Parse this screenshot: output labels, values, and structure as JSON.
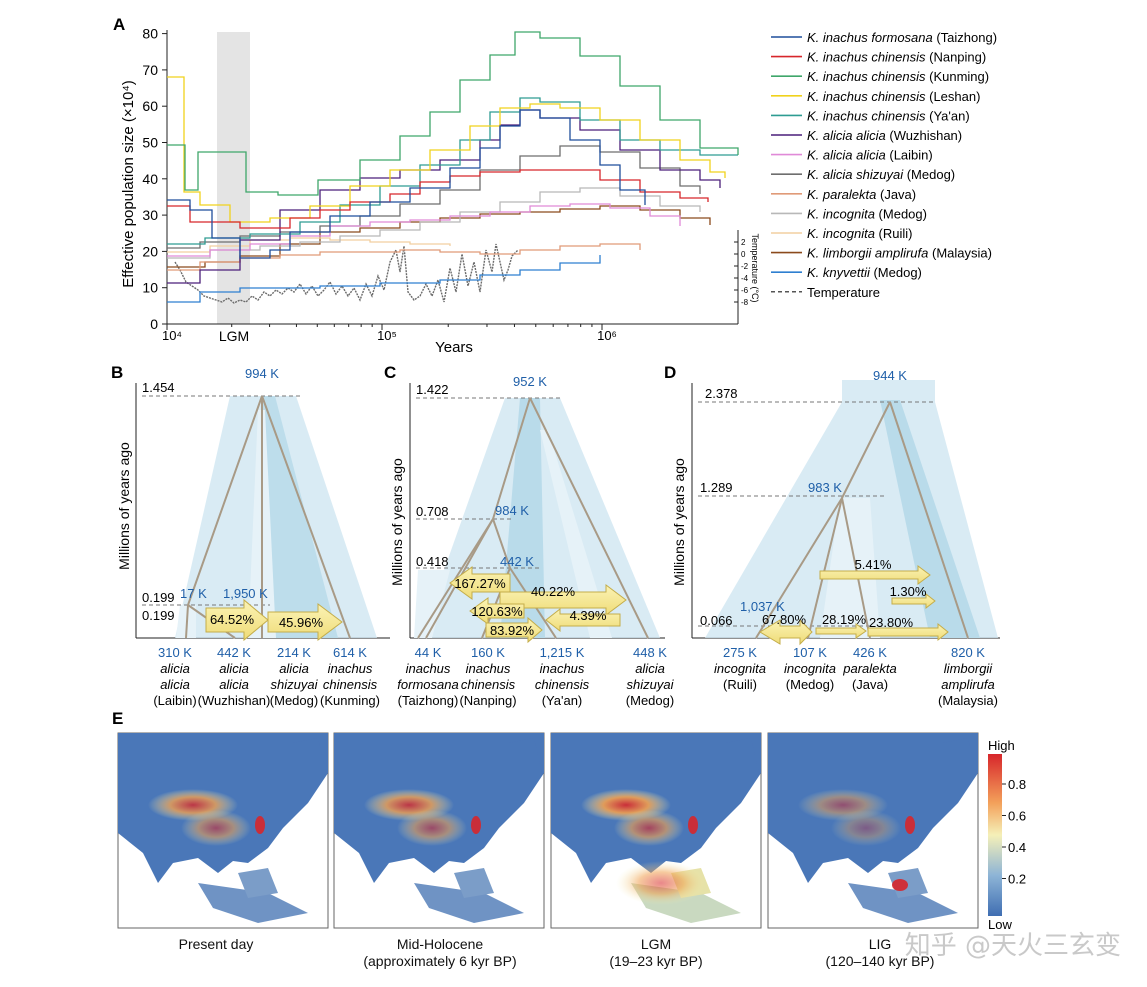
{
  "panels": {
    "a": "A",
    "b": "B",
    "c": "C",
    "d": "D",
    "e": "E"
  },
  "panel_a": {
    "ylabel": "Effective population size (×10⁴)",
    "xlabel": "Years",
    "lgm_label": "LGM",
    "temp_label": "Temperature (°C)",
    "y_ticks": [
      "0",
      "10",
      "20",
      "30",
      "40",
      "50",
      "60",
      "70",
      "80"
    ],
    "x_ticks": [
      "10⁴",
      "10⁵",
      "10⁶"
    ],
    "temp_ticks": [
      "2",
      "0",
      "-2",
      "-4",
      "-6",
      "-8"
    ],
    "legend": [
      {
        "sp": "K. inachus formosana",
        "pop": "(Taizhong)",
        "color": "#1f4e9c"
      },
      {
        "sp": "K. inachus chinensis",
        "pop": "(Nanping)",
        "color": "#d7262b"
      },
      {
        "sp": "K. inachus chinensis",
        "pop": "(Kunming)",
        "color": "#3fa66a"
      },
      {
        "sp": "K. inachus chinensis",
        "pop": "(Leshan)",
        "color": "#f0d21c"
      },
      {
        "sp": "K. inachus chinensis",
        "pop": "(Ya'an)",
        "color": "#2e9c92"
      },
      {
        "sp": "K. alicia alicia",
        "pop": "(Wuzhishan)",
        "color": "#4a1f7a"
      },
      {
        "sp": "K. alicia alicia",
        "pop": "(Laibin)",
        "color": "#e08ad8"
      },
      {
        "sp": "K. alicia shizuyai",
        "pop": "(Medog)",
        "color": "#6e6e6e"
      },
      {
        "sp": "K. paralekta",
        "pop": "(Java)",
        "color": "#e09a78"
      },
      {
        "sp": "K. incognita",
        "pop": "(Medog)",
        "color": "#b8b8b8"
      },
      {
        "sp": "K. incognita",
        "pop": "(Ruili)",
        "color": "#f2cfa0"
      },
      {
        "sp": "K. limborgii amplirufa",
        "pop": "(Malaysia)",
        "color": "#8b4a1c"
      },
      {
        "sp": "K. knyvettii",
        "pop": "(Medog)",
        "color": "#2e7fd0"
      },
      {
        "sp": "Temperature",
        "pop": "",
        "color": "#555555"
      }
    ]
  },
  "axis_label_myr": "Millions of years ago",
  "panel_b": {
    "root_time": "1.454",
    "root_ne": "994 K",
    "t1": "0.199",
    "t2": "0.199",
    "ne_17": "17 K",
    "ne_1950": "1,950 K",
    "mig1": "64.52%",
    "mig2": "45.96%",
    "leaves": [
      {
        "ne": "310 K",
        "l1": "alicia",
        "l2": "alicia",
        "l3": "(Laibin)"
      },
      {
        "ne": "442 K",
        "l1": "alicia",
        "l2": "alicia",
        "l3": "(Wuzhishan)"
      },
      {
        "ne": "214 K",
        "l1": "alicia",
        "l2": "shizuyai",
        "l3": "(Medog)"
      },
      {
        "ne": "614 K",
        "l1": "inachus",
        "l2": "chinensis",
        "l3": "(Kunming)"
      }
    ]
  },
  "panel_c": {
    "root_time": "1.422",
    "root_ne": "952 K",
    "t1": "0.708",
    "ne1": "984 K",
    "t2": "0.418",
    "ne2": "442 K",
    "mig": [
      "167.27%",
      "40.22%",
      "120.63%",
      "4.39%",
      "83.92%"
    ],
    "leaves": [
      {
        "ne": "44 K",
        "l1": "inachus",
        "l2": "formosana",
        "l3": "(Taizhong)"
      },
      {
        "ne": "160 K",
        "l1": "inachus",
        "l2": "chinensis",
        "l3": "(Nanping)"
      },
      {
        "ne": "1,215 K",
        "l1": "inachus",
        "l2": "chinensis",
        "l3": "(Ya'an)"
      },
      {
        "ne": "448 K",
        "l1": "alicia",
        "l2": "shizuyai",
        "l3": "(Medog)"
      }
    ]
  },
  "panel_d": {
    "root_time": "2.378",
    "root_ne": "944 K",
    "t1": "1.289",
    "ne1": "983 K",
    "t2": "0.066",
    "ne2": "1,037 K",
    "mig": [
      "5.41%",
      "1.30%",
      "67.80%",
      "28.19%",
      "23.80%"
    ],
    "leaves": [
      {
        "ne": "275 K",
        "l1": "incognita",
        "l2": "(Ruili)"
      },
      {
        "ne": "107 K",
        "l1": "incognita",
        "l2": "(Medog)"
      },
      {
        "ne": "426 K",
        "l1": "paralekta",
        "l2": "(Java)"
      },
      {
        "ne": "820 K",
        "l1": "limborgii",
        "l2": "amplirufa",
        "l3": "(Malaysia)"
      }
    ]
  },
  "panel_e": {
    "legend_high": "High",
    "legend_low": "Low",
    "legend_ticks": [
      "0.8",
      "0.6",
      "0.4",
      "0.2"
    ],
    "maps": [
      {
        "l1": "Present day",
        "l2": ""
      },
      {
        "l1": "Mid-Holocene",
        "l2": "(approximately 6 kyr BP)"
      },
      {
        "l1": "LGM",
        "l2": "(19–23 kyr BP)"
      },
      {
        "l1": "LIG",
        "l2": "(120–140 kyr BP)"
      }
    ]
  },
  "watermark": "知乎 @天火三玄变"
}
